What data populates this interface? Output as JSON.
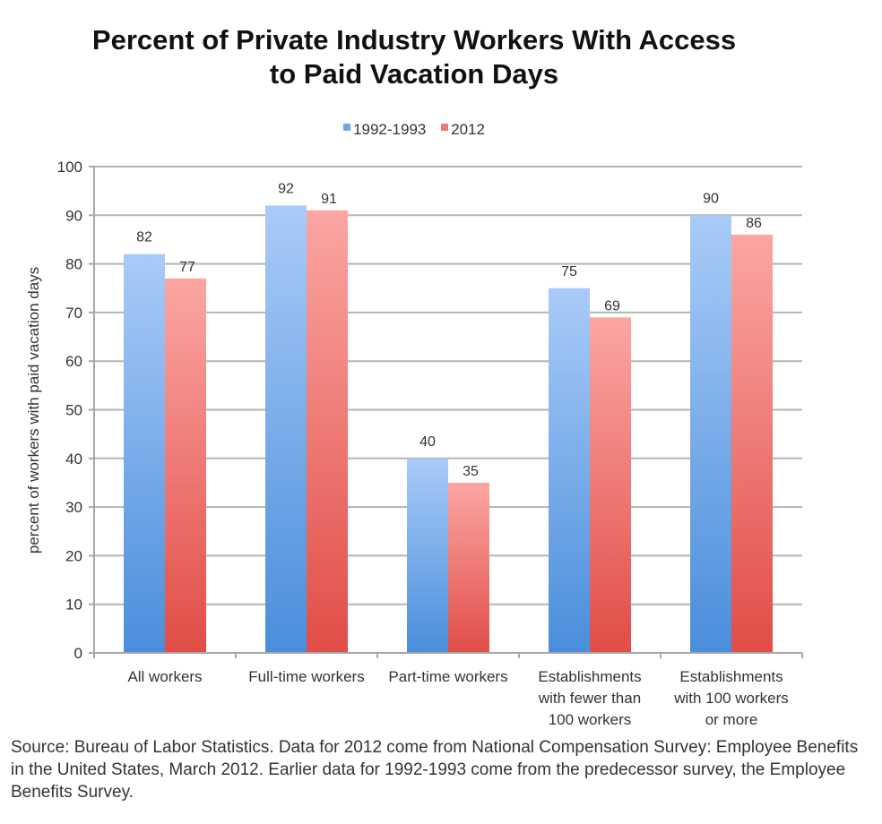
{
  "chart_data": {
    "type": "bar",
    "title": [
      "Percent of Private Industry Workers With Access",
      "to Paid Vacation Days"
    ],
    "xlabel": "",
    "ylabel": "percent of workers with paid vacation days",
    "ylim": [
      0,
      100
    ],
    "yticks": [
      0,
      10,
      20,
      30,
      40,
      50,
      60,
      70,
      80,
      90,
      100
    ],
    "grid": true,
    "legend_position": "top-center",
    "categories": [
      [
        "All workers"
      ],
      [
        "Full-time workers"
      ],
      [
        "Part-time workers"
      ],
      [
        "Establishments",
        "with fewer than",
        "100 workers"
      ],
      [
        "Establishments",
        "with 100 workers",
        "or more"
      ]
    ],
    "series": [
      {
        "name": "1992-1993",
        "values": [
          82,
          92,
          40,
          75,
          90
        ],
        "color_top": "#a9cbf8",
        "color_bottom": "#4a8edb"
      },
      {
        "name": "2012",
        "values": [
          77,
          91,
          35,
          69,
          86
        ],
        "color_top": "#fba6a3",
        "color_bottom": "#e14d47"
      }
    ]
  },
  "source_note": "Source: Bureau of Labor Statistics. Data for 2012 come from National Compensation Survey: Employee Benefits in the United States, March 2012. Earlier data for 1992-1993 come from the predecessor survey, the Employee Benefits Survey."
}
